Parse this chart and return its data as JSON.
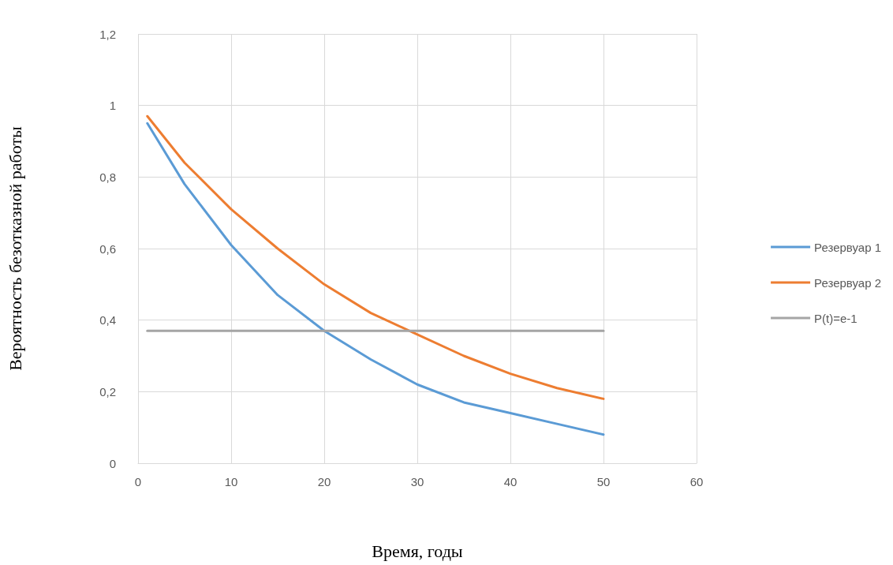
{
  "chart_data": {
    "type": "line",
    "xlabel": "Время, годы",
    "ylabel": "Вероятность безотказной работы",
    "xlim": [
      0,
      60
    ],
    "xticks": [
      0,
      10,
      20,
      30,
      40,
      50,
      60
    ],
    "ylim": [
      0,
      1.2
    ],
    "yticks": [
      0,
      {
        "value": 0.2,
        "label": "0,2"
      },
      {
        "value": 0.4,
        "label": "0,4"
      },
      {
        "value": 0.6,
        "label": "0,6"
      },
      {
        "value": 0.8,
        "label": "0,8"
      },
      1,
      {
        "value": 1.2,
        "label": "1,2"
      }
    ],
    "x": [
      1,
      5,
      10,
      15,
      20,
      25,
      30,
      35,
      40,
      45,
      50
    ],
    "series": [
      {
        "name": "Резервуар 1",
        "color": "#5b9bd5",
        "values": [
          0.95,
          0.78,
          0.61,
          0.47,
          0.37,
          0.29,
          0.22,
          0.17,
          0.14,
          0.11,
          0.08
        ]
      },
      {
        "name": "Резервуар 2",
        "color": "#ed7d31",
        "values": [
          0.97,
          0.84,
          0.71,
          0.6,
          0.5,
          0.42,
          0.36,
          0.3,
          0.25,
          0.21,
          0.18
        ]
      },
      {
        "name": "P(t)=e-1",
        "color": "#a5a5a5",
        "x": [
          1,
          50
        ],
        "values": [
          0.37,
          0.37
        ]
      }
    ],
    "grid": true,
    "legend": "right",
    "marker": "none",
    "line_style": "solid"
  }
}
